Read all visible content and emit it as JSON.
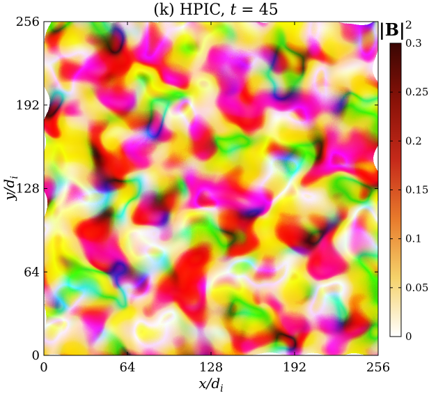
{
  "chart_data": {
    "type": "heatmap",
    "title": "(k) HPIC, t = 45",
    "title_prefix": "(k) HPIC, ",
    "title_var": "t",
    "title_suffix": " = 45",
    "xlabel": "x/d_i",
    "xlabel_main": "x/d",
    "xlabel_sub": "i",
    "ylabel": "y/d_i",
    "ylabel_main": "y/d",
    "ylabel_sub": "i",
    "xlim": [
      0,
      256
    ],
    "ylim": [
      0,
      256
    ],
    "xticks": [
      0,
      64,
      128,
      192,
      256
    ],
    "yticks": [
      0,
      64,
      128,
      192,
      256
    ],
    "xtick_labels": [
      "0",
      "64",
      "128",
      "192",
      "256"
    ],
    "ytick_labels": [
      "0",
      "64",
      "128",
      "192",
      "256"
    ],
    "colorbar": {
      "label": "|B|²",
      "label_main": "|B|",
      "label_sup": "2",
      "range": [
        0,
        0.3
      ],
      "ticks": [
        0,
        0.05,
        0.1,
        0.15,
        0.2,
        0.25,
        0.3
      ],
      "tick_labels": [
        "0",
        "0.05",
        "0.1",
        "0.15",
        "0.2",
        "0.25",
        "0.3"
      ],
      "colormap": [
        "#ffffff",
        "#f5d26b",
        "#e87b2c",
        "#c62a1a",
        "#8a1208",
        "#3a0603"
      ]
    },
    "grid": false,
    "legend": "none"
  }
}
